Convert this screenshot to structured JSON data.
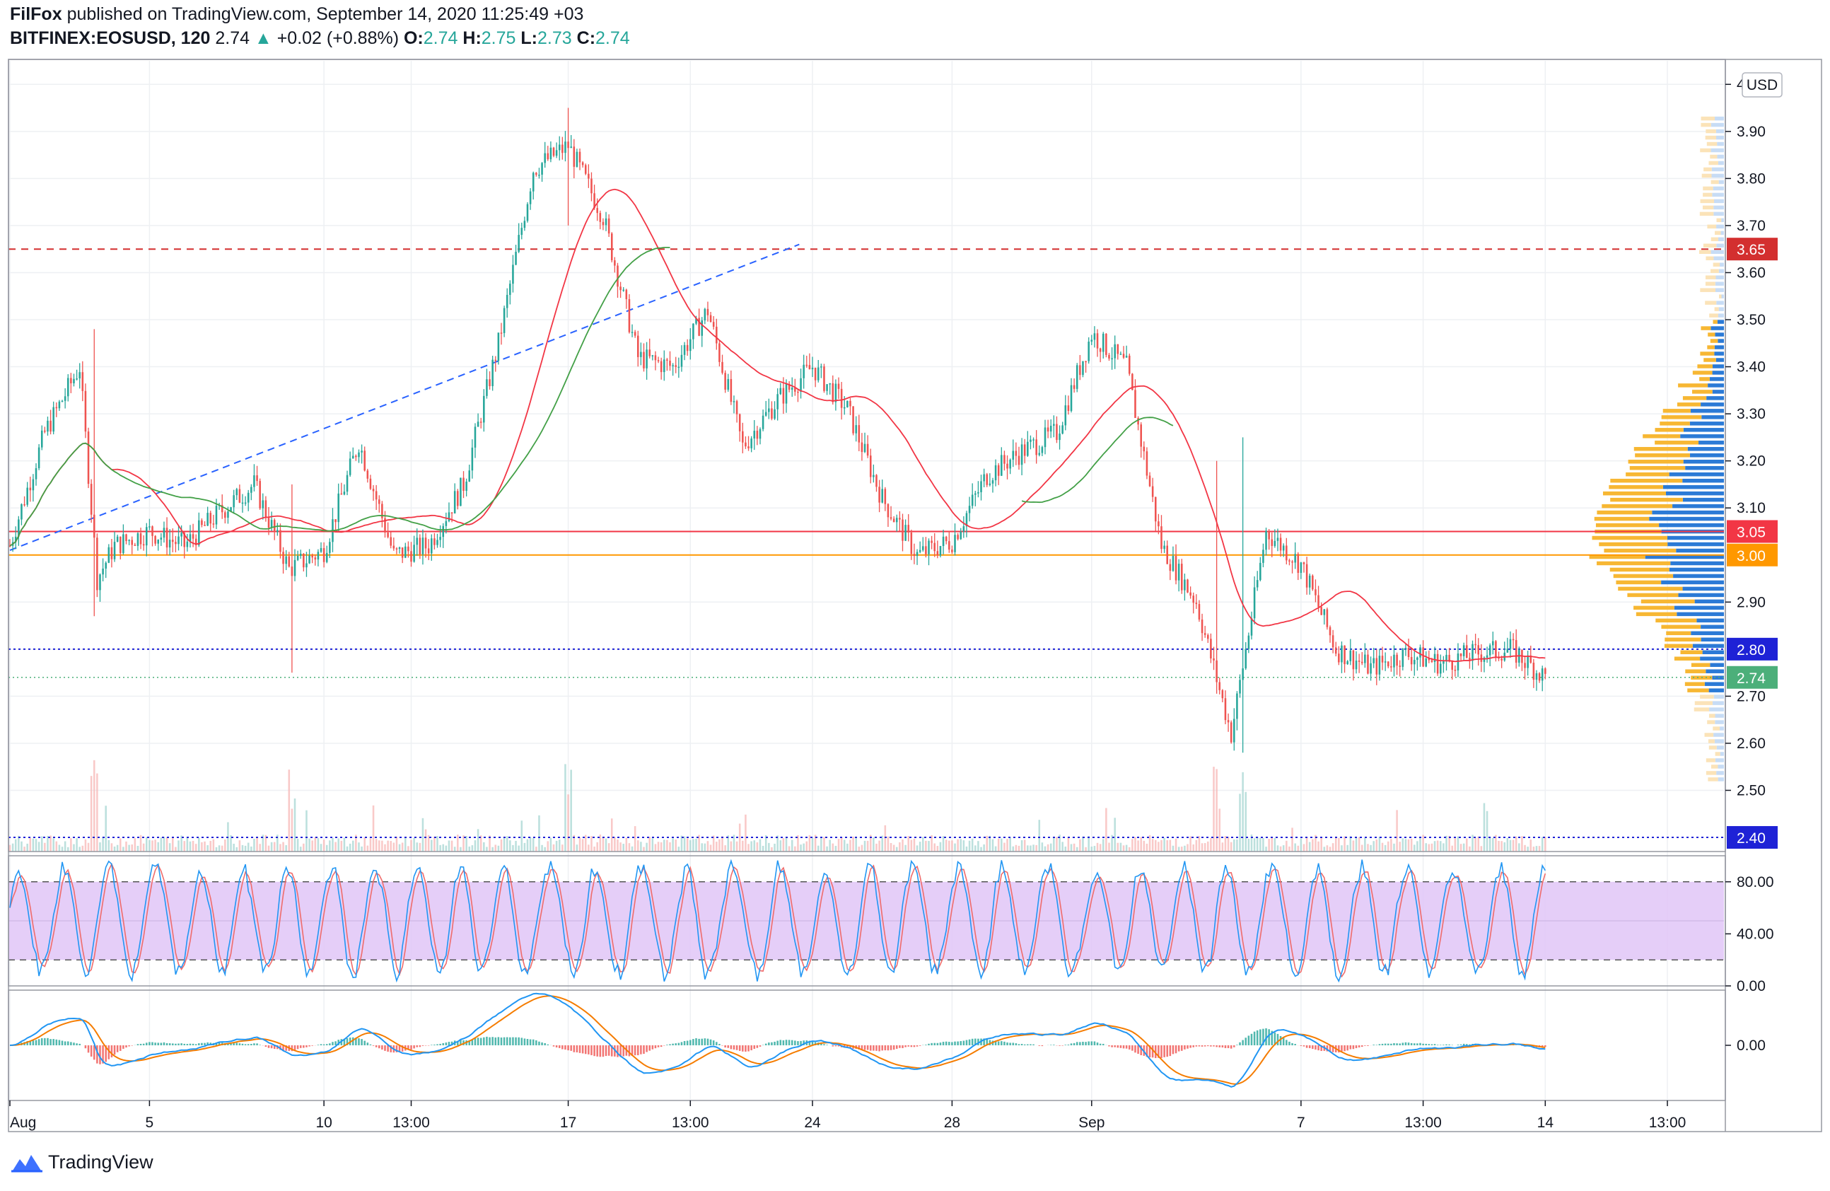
{
  "header": {
    "author": "FilFox",
    "published_text": "published on TradingView.com, September 14, 2020 11:25:49 +03",
    "symbol": "BITFINEX:EOSUSD, 120",
    "last": "2.74",
    "change": "+0.02 (+0.88%)",
    "o_label": "O:",
    "o": "2.74",
    "h_label": "H:",
    "h": "2.75",
    "l_label": "L:",
    "l": "2.73",
    "c_label": "C:",
    "c": "2.74"
  },
  "currency_label": "USD",
  "brand": "TradingView",
  "colors": {
    "up": "#26a69a",
    "down": "#ef5350",
    "ma_fast": "#f23645",
    "ma_slow": "#43a047",
    "res_line": "#f23645",
    "support_line": "#ff9800",
    "dotted_blue": "#1e22d6",
    "trend": "#2962ff",
    "stoch_band": "#e1c6f7",
    "stoch_k": "#2196f3",
    "stoch_d": "#ef6c6c",
    "macd": "#2196f3",
    "signal": "#f57c00",
    "vp_up": "#2b7ad6",
    "vp_down": "#f7b733"
  },
  "chart_data": [
    {
      "type": "candlestick",
      "symbol": "BITFINEX:EOSUSD",
      "interval": "120",
      "x_ticks": [
        "Aug",
        "5",
        "10",
        "13:00",
        "17",
        "13:00",
        "24",
        "28",
        "Sep",
        "7",
        "13:00",
        "14",
        "13:00"
      ],
      "y_ticks": [
        "4.00",
        "3.90",
        "3.80",
        "3.70",
        "3.60",
        "3.50",
        "3.40",
        "3.30",
        "3.20",
        "3.10",
        "2.90",
        "2.70",
        "2.60",
        "2.50"
      ],
      "ylim": [
        2.37,
        4.05
      ],
      "price_labels": [
        {
          "value": 3.65,
          "text": "3.65",
          "color": "#d32f2f"
        },
        {
          "value": 3.05,
          "text": "3.05",
          "color": "#f23645"
        },
        {
          "value": 3.0,
          "text": "3.00",
          "color": "#ff9800"
        },
        {
          "value": 2.8,
          "text": "2.80",
          "color": "#1e22d6"
        },
        {
          "value": 2.74,
          "text": "2.74",
          "color": "#4caf7a"
        },
        {
          "value": 2.4,
          "text": "2.40",
          "color": "#1e22d6"
        }
      ],
      "horizontal_lines": [
        {
          "value": 3.65,
          "style": "dashed",
          "color": "#d32f2f"
        },
        {
          "value": 3.05,
          "style": "solid",
          "color": "#f23645"
        },
        {
          "value": 3.0,
          "style": "solid",
          "color": "#ff9800"
        },
        {
          "value": 2.8,
          "style": "dotted",
          "color": "#1e22d6"
        },
        {
          "value": 2.4,
          "style": "dotted",
          "color": "#1e22d6"
        }
      ],
      "trendline": {
        "from": {
          "x": "Aug 1",
          "y": 3.01
        },
        "to": {
          "x": "Aug 22",
          "y": 3.66
        }
      },
      "close_path": [
        [
          "Aug 1",
          3.02
        ],
        [
          "Aug 2",
          3.26
        ],
        [
          "Aug 3",
          3.4
        ],
        [
          "Aug 3 +",
          2.95
        ],
        [
          "Aug 4",
          3.02
        ],
        [
          "Aug 5",
          3.05
        ],
        [
          "Aug 6",
          3.02
        ],
        [
          "Aug 7",
          3.09
        ],
        [
          "Aug 8",
          3.15
        ],
        [
          "Aug 9",
          2.97
        ],
        [
          "Aug 10",
          3.01
        ],
        [
          "Aug 11",
          3.24
        ],
        [
          "Aug 12",
          3.0
        ],
        [
          "Aug 13",
          3.02
        ],
        [
          "Aug 14",
          3.15
        ],
        [
          "Aug 15",
          3.45
        ],
        [
          "Aug 16",
          3.82
        ],
        [
          "Aug 17",
          3.87
        ],
        [
          "Aug 18",
          3.72
        ],
        [
          "Aug 19",
          3.42
        ],
        [
          "Aug 20",
          3.4
        ],
        [
          "Aug 21",
          3.52
        ],
        [
          "Aug 22",
          3.23
        ],
        [
          "Aug 23",
          3.33
        ],
        [
          "Aug 24",
          3.4
        ],
        [
          "Aug 25",
          3.31
        ],
        [
          "Aug 26",
          3.12
        ],
        [
          "Aug 27",
          3.0
        ],
        [
          "Aug 28",
          3.03
        ],
        [
          "Aug 29",
          3.17
        ],
        [
          "Aug 30",
          3.22
        ],
        [
          "Aug 31",
          3.26
        ],
        [
          "Sep 1",
          3.47
        ],
        [
          "Sep 2",
          3.4
        ],
        [
          "Sep 3",
          3.02
        ],
        [
          "Sep 4",
          2.9
        ],
        [
          "Sep 5",
          2.62
        ],
        [
          "Sep 6",
          3.05
        ],
        [
          "Sep 7",
          2.98
        ],
        [
          "Sep 8",
          2.8
        ],
        [
          "Sep 9",
          2.76
        ],
        [
          "Sep 10",
          2.79
        ],
        [
          "Sep 11",
          2.77
        ],
        [
          "Sep 12",
          2.79
        ],
        [
          "Sep 13",
          2.8
        ],
        [
          "Sep 14",
          2.74
        ]
      ]
    },
    {
      "type": "line",
      "name_hint": "stochastic oscillator",
      "y_ticks": [
        "80.00",
        "40.00",
        "0.00"
      ],
      "ylim": [
        0,
        100
      ],
      "band": [
        20,
        80
      ]
    },
    {
      "type": "line",
      "name_hint": "macd",
      "y_ticks": [
        "0.00"
      ],
      "ylim": [
        -0.18,
        0.18
      ]
    }
  ]
}
